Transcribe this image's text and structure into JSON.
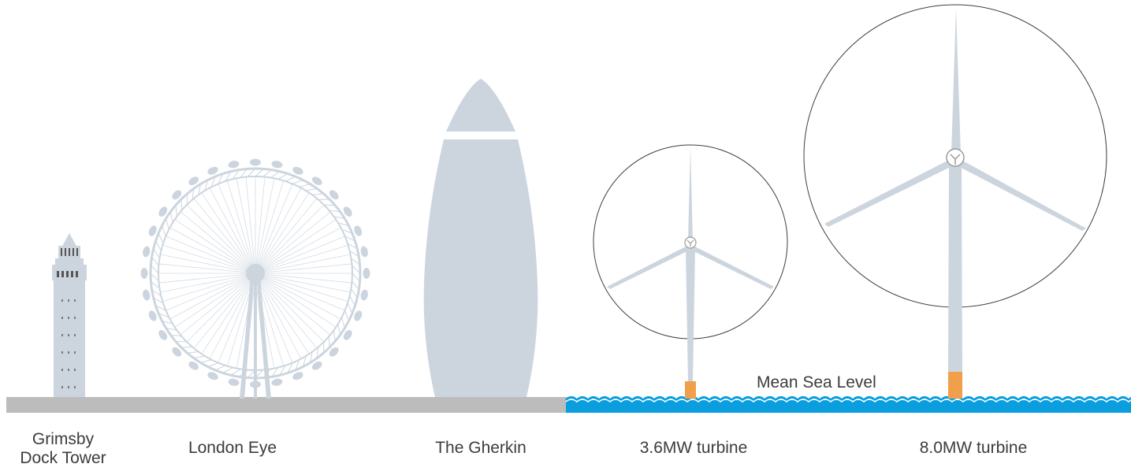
{
  "landmarks": {
    "grimsby_line1": "Grimsby",
    "grimsby_line2": "Dock Tower",
    "london_eye": "London Eye",
    "gherkin": "The Gherkin",
    "turbine_small": "3.6MW turbine",
    "turbine_large": "8.0MW turbine"
  },
  "sea_level_label": "Mean Sea Level",
  "colors": {
    "structure": "#ccd5de",
    "ground": "#bcbcbc",
    "sea": "#0a9ede",
    "transition_piece": "#f0a04a",
    "circle_stroke": "#404040"
  }
}
